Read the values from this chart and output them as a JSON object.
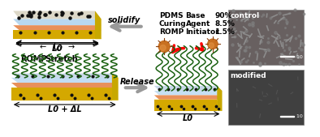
{
  "background_color": "#ffffff",
  "pdms_table": {
    "col1": [
      "PDMS",
      "Curing",
      "ROMP"
    ],
    "col2": [
      "Base",
      "Agent",
      "Initiator"
    ],
    "col3": [
      "90%",
      "8.5%",
      "1.5%"
    ]
  },
  "label_solidify": "solidify",
  "label_release": "Release",
  "label_romp": "ROMP",
  "label_stretch": "Stretch",
  "label_L0_top": "L0",
  "label_L0_bottom": "L0 + ΔL",
  "label_L0_right": "L0",
  "label_control": "control",
  "label_modified": "modified",
  "scale_bar": "10 μm",
  "yellow_color": "#f0c800",
  "blue_color": "#b8d8f0",
  "pink_color": "#f0a080",
  "orange_color": "#e8905a",
  "green_dark": "#1a6010",
  "green_light": "#2a8020",
  "sem_control_bg": "#686868",
  "sem_modified_bg": "#484848",
  "gray_arrow": "#aaaaaa",
  "top_slab_top": "#e8e0d0",
  "bot_slab_top": "#c8d8e8"
}
